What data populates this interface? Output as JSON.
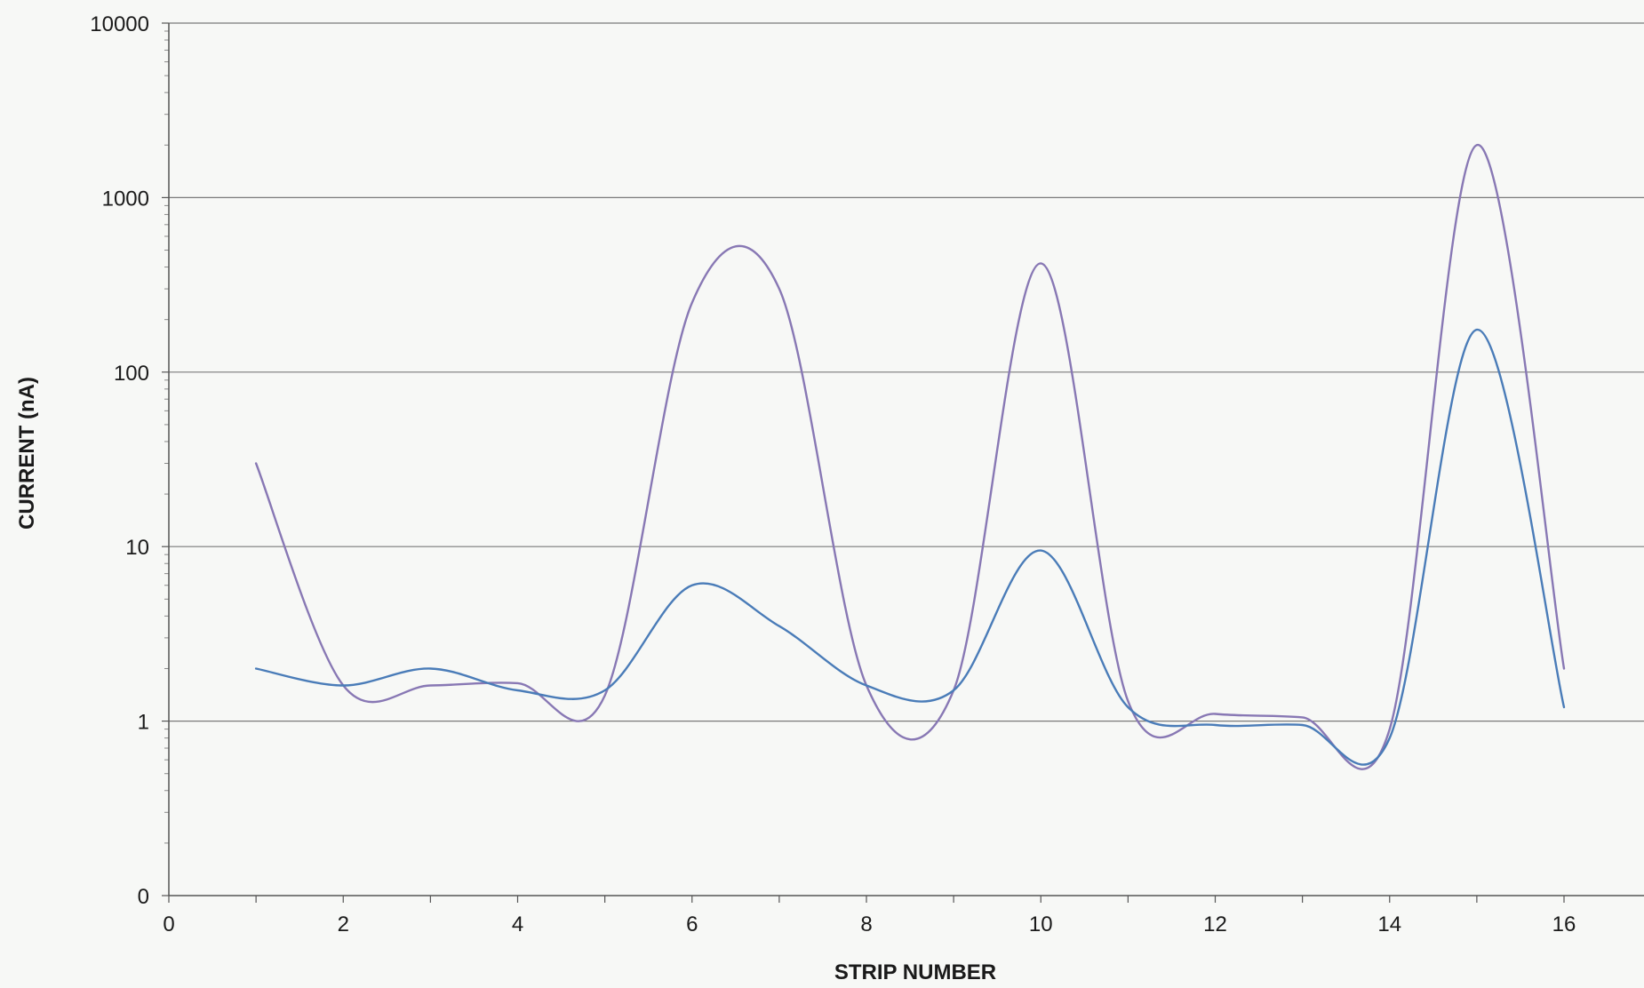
{
  "chart_data": {
    "type": "line",
    "title": "",
    "xlabel": "STRIP NUMBER",
    "ylabel": "CURRENT (nA)",
    "xlim": [
      0,
      16
    ],
    "x_ticks": [
      0,
      2,
      4,
      6,
      8,
      10,
      12,
      14,
      16
    ],
    "x_tick_labels": [
      "0",
      "2",
      "4",
      "6",
      "8",
      "10",
      "12",
      "14",
      "16"
    ],
    "y_scale": "log",
    "y_tick_labels": [
      "10000",
      "1000",
      "100",
      "10",
      "1",
      "0"
    ],
    "grid": "horizontal",
    "legend": "none",
    "smooth": true,
    "x": [
      1,
      2,
      3,
      4,
      5,
      6,
      7,
      8,
      9,
      10,
      11,
      12,
      13,
      14,
      15,
      16
    ],
    "series": [
      {
        "color": "#8878b4",
        "values": [
          30,
          1.6,
          1.6,
          1.65,
          1.4,
          250,
          300,
          1.6,
          1.5,
          420,
          1.3,
          1.1,
          1.05,
          0.9,
          2000,
          2.0
        ]
      },
      {
        "color": "#4a7cb8",
        "values": [
          2.0,
          1.6,
          2.0,
          1.5,
          1.5,
          6.0,
          3.5,
          1.6,
          1.5,
          9.5,
          1.2,
          0.95,
          0.95,
          0.8,
          175,
          1.2
        ]
      }
    ]
  }
}
